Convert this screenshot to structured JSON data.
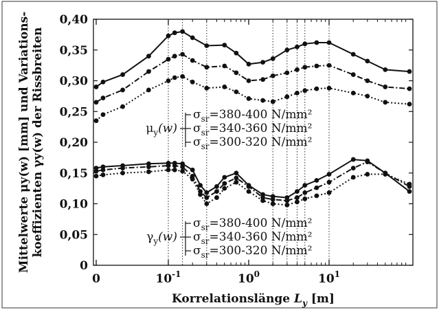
{
  "chart_data": {
    "type": "line",
    "x_scale": "log-with-zero",
    "xlabel_main": "Korrelationslänge ",
    "xlabel_var": "L",
    "xlabel_sub": "y",
    "xlabel_unit": " [m]",
    "ylabel_line1": "Mittelwerte μy(w) [mm] und Variations-",
    "ylabel_line2": "koeffizienten γy(w) der Rissbreiten",
    "ylim": [
      0,
      0.4
    ],
    "yticks": [
      "0",
      "0,05",
      "0,10",
      "0,15",
      "0,20",
      "0,25",
      "0,30",
      "0,35",
      "0,40"
    ],
    "xticks": [
      {
        "base": "0",
        "exp": "",
        "value": 0
      },
      {
        "base": "10",
        "exp": "-1",
        "value": 0.1
      },
      {
        "base": "10",
        "exp": "0",
        "value": 1
      },
      {
        "base": "10",
        "exp": "1",
        "value": 10
      }
    ],
    "vlines_x": [
      0.1,
      0.15,
      0.3,
      2,
      3,
      4,
      5,
      10
    ],
    "legend_mu": {
      "symbol": "μ",
      "sub": "y",
      "arg": "(w)",
      "entries": [
        {
          "sym": "σ",
          "sub": "sr",
          "text": "=380-400 N/mm²"
        },
        {
          "sym": "σ",
          "sub": "sr",
          "text": "=340-360 N/mm²"
        },
        {
          "sym": "σ",
          "sub": "sr",
          "text": "=300-320 N/mm²"
        }
      ]
    },
    "legend_gamma": {
      "symbol": "γ",
      "sub": "y",
      "arg": "(w)",
      "entries": [
        {
          "sym": "σ",
          "sub": "sr",
          "text": "=380-400 N/mm²"
        },
        {
          "sym": "σ",
          "sub": "sr",
          "text": "=340-360 N/mm²"
        },
        {
          "sym": "σ",
          "sub": "sr",
          "text": "=300-320 N/mm²"
        }
      ]
    },
    "series": [
      {
        "group": "mu",
        "style": "solid",
        "x": [
          0,
          0.01,
          0.02,
          0.05,
          0.1,
          0.12,
          0.15,
          0.2,
          0.3,
          0.5,
          0.7,
          1,
          1.5,
          2,
          3,
          4,
          5,
          7,
          10,
          20,
          30,
          50,
          100
        ],
        "y": [
          0.29,
          0.298,
          0.31,
          0.34,
          0.373,
          0.378,
          0.38,
          0.37,
          0.357,
          0.358,
          0.345,
          0.327,
          0.33,
          0.336,
          0.35,
          0.355,
          0.36,
          0.362,
          0.362,
          0.343,
          0.332,
          0.318,
          0.315
        ]
      },
      {
        "group": "mu",
        "style": "dashdot",
        "x": [
          0,
          0.01,
          0.02,
          0.05,
          0.1,
          0.12,
          0.15,
          0.2,
          0.3,
          0.5,
          0.7,
          1,
          1.5,
          2,
          3,
          4,
          5,
          7,
          10,
          20,
          30,
          50,
          100
        ],
        "y": [
          0.265,
          0.272,
          0.285,
          0.315,
          0.335,
          0.34,
          0.343,
          0.333,
          0.322,
          0.324,
          0.313,
          0.3,
          0.302,
          0.308,
          0.313,
          0.318,
          0.322,
          0.324,
          0.325,
          0.31,
          0.3,
          0.29,
          0.287
        ]
      },
      {
        "group": "mu",
        "style": "dotted",
        "x": [
          0,
          0.01,
          0.02,
          0.05,
          0.1,
          0.12,
          0.15,
          0.2,
          0.3,
          0.5,
          0.7,
          1,
          1.5,
          2,
          3,
          4,
          5,
          7,
          10,
          20,
          30,
          50,
          100
        ],
        "y": [
          0.235,
          0.245,
          0.258,
          0.285,
          0.3,
          0.305,
          0.307,
          0.298,
          0.288,
          0.29,
          0.282,
          0.271,
          0.268,
          0.266,
          0.274,
          0.28,
          0.284,
          0.287,
          0.288,
          0.28,
          0.275,
          0.265,
          0.262
        ]
      },
      {
        "group": "gamma",
        "style": "solid",
        "x": [
          0,
          0.01,
          0.02,
          0.05,
          0.1,
          0.12,
          0.15,
          0.2,
          0.25,
          0.3,
          0.4,
          0.5,
          0.7,
          1,
          1.5,
          2,
          3,
          4,
          5,
          7,
          10,
          20,
          30,
          50,
          100
        ],
        "y": [
          0.158,
          0.16,
          0.162,
          0.165,
          0.166,
          0.166,
          0.165,
          0.155,
          0.13,
          0.118,
          0.128,
          0.143,
          0.15,
          0.13,
          0.115,
          0.112,
          0.11,
          0.12,
          0.13,
          0.138,
          0.148,
          0.172,
          0.17,
          0.15,
          0.12
        ]
      },
      {
        "group": "gamma",
        "style": "dashdot",
        "x": [
          0,
          0.01,
          0.02,
          0.05,
          0.1,
          0.12,
          0.15,
          0.2,
          0.25,
          0.3,
          0.4,
          0.5,
          0.7,
          1,
          1.5,
          2,
          3,
          4,
          5,
          7,
          10,
          20,
          30,
          50,
          100
        ],
        "y": [
          0.153,
          0.155,
          0.158,
          0.16,
          0.162,
          0.162,
          0.16,
          0.145,
          0.12,
          0.11,
          0.12,
          0.133,
          0.142,
          0.128,
          0.11,
          0.107,
          0.105,
          0.11,
          0.118,
          0.126,
          0.135,
          0.158,
          0.168,
          0.15,
          0.128
        ]
      },
      {
        "group": "gamma",
        "style": "dotted",
        "x": [
          0,
          0.01,
          0.02,
          0.05,
          0.1,
          0.12,
          0.15,
          0.2,
          0.25,
          0.3,
          0.4,
          0.5,
          0.7,
          1,
          1.5,
          2,
          3,
          4,
          5,
          7,
          10,
          20,
          30,
          50,
          100
        ],
        "y": [
          0.145,
          0.147,
          0.15,
          0.152,
          0.155,
          0.155,
          0.153,
          0.14,
          0.115,
          0.1,
          0.11,
          0.125,
          0.135,
          0.12,
          0.105,
          0.1,
          0.098,
          0.103,
          0.108,
          0.113,
          0.118,
          0.143,
          0.148,
          0.148,
          0.132
        ]
      }
    ]
  }
}
